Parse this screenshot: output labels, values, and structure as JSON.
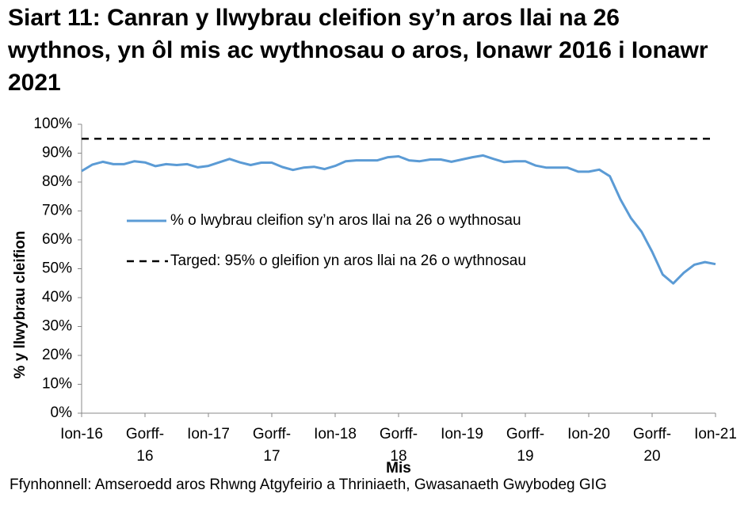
{
  "chart_data": {
    "type": "line",
    "title": "Siart 11: Canran y llwybrau cleifion sy’n aros llai na 26 wythnos, yn ôl mis ac wythnosau o aros, Ionawr 2016 i Ionawr 2021",
    "x_label": "Mis",
    "y_label": "% y llwybrau cleifion",
    "source": "Ffynhonnell: Amseroedd aros Rhwng Atgyfeirio a Thriniaeth, Gwasanaeth Gwybodeg GIG",
    "categories": [
      "Ion-16",
      null,
      null,
      null,
      null,
      null,
      "Gorff-16",
      null,
      null,
      null,
      null,
      null,
      "Ion-17",
      null,
      null,
      null,
      null,
      null,
      "Gorff-17",
      null,
      null,
      null,
      null,
      null,
      "Ion-18",
      null,
      null,
      null,
      null,
      null,
      "Gorff-18",
      null,
      null,
      null,
      null,
      null,
      "Ion-19",
      null,
      null,
      null,
      null,
      null,
      "Gorff-19",
      null,
      null,
      null,
      null,
      null,
      "Ion-20",
      null,
      null,
      null,
      null,
      null,
      "Gorff-20",
      null,
      null,
      null,
      null,
      null,
      "Ion-21"
    ],
    "series": [
      {
        "name": "% o lwybrau cleifion sy’n aros llai na 26 o wythnosau",
        "color": "#5b9bd5",
        "values": [
          83.8,
          86,
          87,
          86.2,
          86.2,
          87.2,
          86.8,
          85.5,
          86.2,
          85.9,
          86.2,
          85.1,
          85.6,
          86.8,
          88,
          86.8,
          85.9,
          86.7,
          86.7,
          85.2,
          84.2,
          85,
          85.3,
          84.5,
          85.6,
          87.2,
          87.5,
          87.5,
          87.5,
          88.6,
          88.9,
          87.5,
          87.2,
          87.8,
          87.8,
          87,
          87.8,
          88.6,
          89.2,
          88,
          86.9,
          87.2,
          87.2,
          85.7,
          85,
          85,
          85,
          83.6,
          83.6,
          84.3,
          82,
          74,
          67.5,
          62.8,
          55.9,
          48,
          44.9,
          48.6,
          51.4,
          52.3,
          51.6
        ]
      }
    ],
    "target": {
      "name": "Targed: 95% o gleifion yn aros llai na 26 o wythnosau",
      "value": 95,
      "color": "#000000"
    },
    "ylim": [
      0,
      100
    ],
    "yticks": [
      {
        "value": 0,
        "label": "0%"
      },
      {
        "value": 10,
        "label": "10%"
      },
      {
        "value": 20,
        "label": "20%"
      },
      {
        "value": 30,
        "label": "30%"
      },
      {
        "value": 40,
        "label": "40%"
      },
      {
        "value": 50,
        "label": "50%"
      },
      {
        "value": 60,
        "label": "60%"
      },
      {
        "value": 70,
        "label": "70%"
      },
      {
        "value": 80,
        "label": "80%"
      },
      {
        "value": 90,
        "label": "90%"
      },
      {
        "value": 100,
        "label": "100%"
      }
    ],
    "grid": false
  }
}
